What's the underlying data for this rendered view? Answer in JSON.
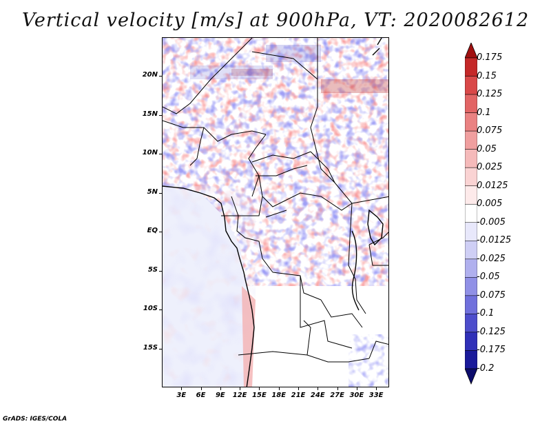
{
  "title": "Vertical velocity [m/s] at 900hPa, VT: 2020082612",
  "credit": "GrADS: IGES/COLA",
  "map": {
    "lon_range": [
      0,
      35
    ],
    "lat_range": [
      -20,
      25
    ],
    "lat_labels": [
      {
        "text": "20N",
        "lat": 20
      },
      {
        "text": "15N",
        "lat": 15
      },
      {
        "text": "10N",
        "lat": 10
      },
      {
        "text": "5N",
        "lat": 5
      },
      {
        "text": "EQ",
        "lat": 0
      },
      {
        "text": "5S",
        "lat": -5
      },
      {
        "text": "10S",
        "lat": -10
      },
      {
        "text": "15S",
        "lat": -15
      }
    ],
    "lon_labels": [
      {
        "text": "3E",
        "lon": 3
      },
      {
        "text": "6E",
        "lon": 6
      },
      {
        "text": "9E",
        "lon": 9
      },
      {
        "text": "12E",
        "lon": 12
      },
      {
        "text": "15E",
        "lon": 15
      },
      {
        "text": "18E",
        "lon": 18
      },
      {
        "text": "21E",
        "lon": 21
      },
      {
        "text": "24E",
        "lon": 24
      },
      {
        "text": "27E",
        "lon": 27
      },
      {
        "text": "30E",
        "lon": 30
      },
      {
        "text": "33E",
        "lon": 33
      }
    ]
  },
  "colorbar": {
    "labels": [
      "0.175",
      "0.15",
      "0.125",
      "0.1",
      "0.075",
      "0.05",
      "0.025",
      "0.0125",
      "0.005",
      "-0.005",
      "-0.0125",
      "-0.025",
      "-0.05",
      "-0.075",
      "-0.1",
      "-0.125",
      "-0.175",
      "-0.2"
    ],
    "colors": [
      "#a01010",
      "#c42828",
      "#d94848",
      "#e26565",
      "#ea8282",
      "#f09f9f",
      "#f5baba",
      "#fad3d3",
      "#fdeaea",
      "#ffffff",
      "#e8e8fb",
      "#cfcff5",
      "#b0b0ee",
      "#9090e6",
      "#7070dc",
      "#4d4dcc",
      "#3030b8",
      "#1a1a9a",
      "#0c0c6c"
    ]
  }
}
